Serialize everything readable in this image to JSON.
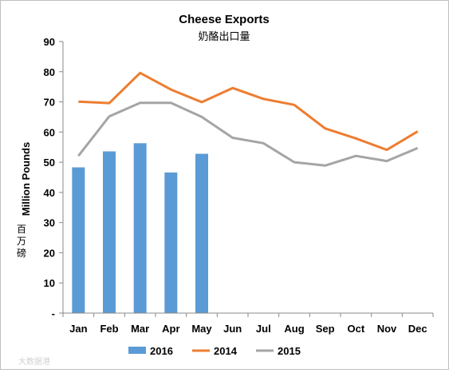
{
  "chart_data": {
    "type": "bar",
    "title": "Cheese Exports",
    "subtitle": "奶酪出口量",
    "ylabel": "Million Pounds",
    "ylabel_secondary": [
      "百",
      "万",
      "磅"
    ],
    "categories": [
      "Jan",
      "Feb",
      "Mar",
      "Apr",
      "May",
      "Jun",
      "Jul",
      "Aug",
      "Sep",
      "Oct",
      "Nov",
      "Dec"
    ],
    "ylim": [
      0,
      90
    ],
    "yticks": [
      "-",
      "10",
      "20",
      "30",
      "40",
      "50",
      "60",
      "70",
      "80",
      "90"
    ],
    "grid": false,
    "legend_position": "bottom",
    "series": [
      {
        "name": "2016",
        "kind": "bar",
        "color": "#5b9bd5",
        "values": [
          48.3,
          53.6,
          56.3,
          46.6,
          52.8,
          null,
          null,
          null,
          null,
          null,
          null,
          null
        ]
      },
      {
        "name": "2014",
        "kind": "line",
        "color": "#ed7d31",
        "values": [
          70.1,
          69.6,
          79.6,
          74.1,
          69.9,
          74.6,
          71.0,
          69.0,
          61.2,
          57.9,
          54.1,
          60.2
        ]
      },
      {
        "name": "2015",
        "kind": "line",
        "color": "#a5a5a5",
        "values": [
          52.1,
          65.2,
          69.7,
          69.7,
          65.0,
          58.1,
          56.3,
          50.0,
          48.9,
          52.1,
          50.4,
          54.7
        ]
      }
    ]
  },
  "watermark": "大数据港"
}
